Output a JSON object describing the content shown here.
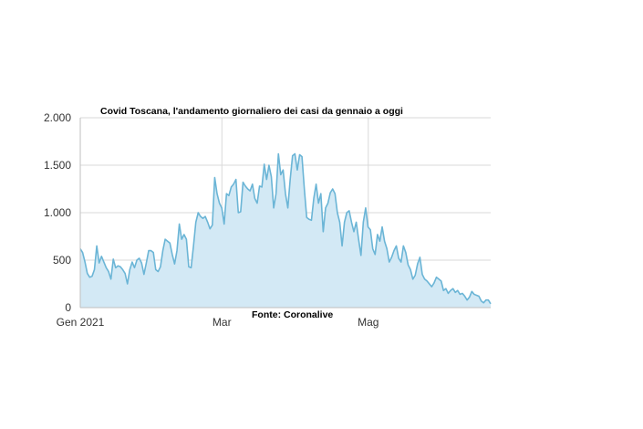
{
  "chart_data": {
    "type": "area",
    "title": "Covid Toscana, l'andamento giornaliero dei casi da gennaio a oggi",
    "source": "Fonte: Coronalive",
    "xlabel": "",
    "ylabel": "",
    "x_start": "2021-01-01",
    "x_end": "2021-06-21",
    "x_ticks": [
      {
        "label": "Gen 2021",
        "date": "2021-01-01"
      },
      {
        "label": "Mar",
        "date": "2021-03-01"
      },
      {
        "label": "Mag",
        "date": "2021-05-01"
      }
    ],
    "y_ticks": [
      {
        "label": "0",
        "value": 0
      },
      {
        "label": "500",
        "value": 500
      },
      {
        "label": "1.000",
        "value": 1000
      },
      {
        "label": "1.500",
        "value": 1500
      },
      {
        "label": "2.000",
        "value": 2000
      }
    ],
    "ylim": [
      0,
      2000
    ],
    "grid": true,
    "legend": "none",
    "colors": {
      "line": "#6bb5d6",
      "fill": "#d3e9f5",
      "grid": "#d9d9d9",
      "axis": "#bfbfbf"
    },
    "series": [
      {
        "values": [
          620,
          580,
          480,
          360,
          320,
          330,
          400,
          650,
          470,
          540,
          480,
          420,
          380,
          300,
          510,
          420,
          440,
          430,
          400,
          360,
          250,
          400,
          480,
          420,
          500,
          520,
          470,
          350,
          470,
          600,
          600,
          580,
          400,
          380,
          430,
          600,
          720,
          700,
          680,
          560,
          460,
          600,
          880,
          720,
          770,
          720,
          430,
          420,
          650,
          900,
          1000,
          960,
          940,
          960,
          900,
          830,
          870,
          1370,
          1200,
          1100,
          1050,
          880,
          1200,
          1180,
          1270,
          1300,
          1350,
          1000,
          1010,
          1320,
          1280,
          1250,
          1230,
          1300,
          1150,
          1100,
          1280,
          1270,
          1510,
          1350,
          1500,
          1380,
          1050,
          1200,
          1620,
          1400,
          1450,
          1200,
          1050,
          1350,
          1600,
          1620,
          1450,
          1610,
          1590,
          1250,
          950,
          930,
          920,
          1150,
          1300,
          1100,
          1200,
          800,
          1050,
          1100,
          1210,
          1250,
          1200,
          1000,
          900,
          650,
          900,
          1000,
          1020,
          900,
          800,
          900,
          720,
          550,
          900,
          1050,
          850,
          820,
          620,
          560,
          770,
          700,
          850,
          700,
          620,
          480,
          530,
          600,
          650,
          520,
          480,
          650,
          580,
          450,
          400,
          300,
          340,
          460,
          530,
          350,
          300,
          280,
          250,
          220,
          260,
          320,
          300,
          280,
          180,
          200,
          150,
          180,
          200,
          160,
          180,
          140,
          150,
          120,
          80,
          110,
          170,
          140,
          130,
          120,
          70,
          50,
          80,
          80,
          40
        ]
      }
    ]
  }
}
